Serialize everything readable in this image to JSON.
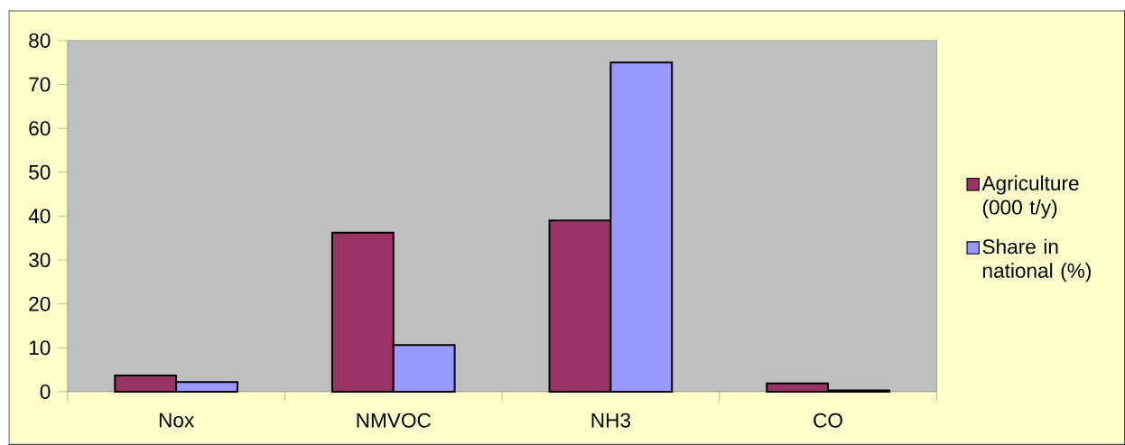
{
  "chart_data": {
    "type": "bar",
    "categories": [
      "Nox",
      "NMVOC",
      "NH3",
      "CO"
    ],
    "series": [
      {
        "name": "Agriculture (000 t/y)",
        "color": "#993366",
        "values": [
          3.7,
          36.2,
          39,
          1.9
        ]
      },
      {
        "name": "Share in national (%)",
        "color": "#9999ff",
        "values": [
          2.2,
          10.6,
          75,
          0.3
        ]
      }
    ],
    "ylim": [
      0,
      80
    ],
    "yticks": [
      0,
      10,
      20,
      30,
      40,
      50,
      60,
      70,
      80
    ],
    "grid": false,
    "legend": "right"
  }
}
